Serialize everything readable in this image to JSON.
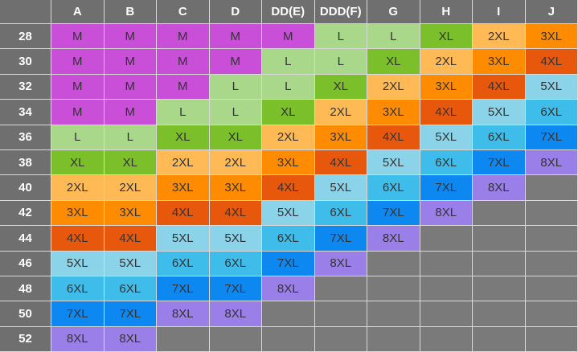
{
  "columns": [
    "A",
    "B",
    "C",
    "D",
    "DD(E)",
    "DDD(F)",
    "G",
    "H",
    "I",
    "J"
  ],
  "rows": [
    {
      "band": "28",
      "sizes": [
        "M",
        "M",
        "M",
        "M",
        "M",
        "L",
        "L",
        "XL",
        "2XL",
        "3XL"
      ]
    },
    {
      "band": "30",
      "sizes": [
        "M",
        "M",
        "M",
        "M",
        "L",
        "L",
        "XL",
        "2XL",
        "3XL",
        "4XL"
      ]
    },
    {
      "band": "32",
      "sizes": [
        "M",
        "M",
        "M",
        "L",
        "L",
        "XL",
        "2XL",
        "3XL",
        "4XL",
        "5XL"
      ]
    },
    {
      "band": "34",
      "sizes": [
        "M",
        "M",
        "L",
        "L",
        "XL",
        "2XL",
        "3XL",
        "4XL",
        "5XL",
        "6XL"
      ]
    },
    {
      "band": "36",
      "sizes": [
        "L",
        "L",
        "XL",
        "XL",
        "2XL",
        "3XL",
        "4XL",
        "5XL",
        "6XL",
        "7XL"
      ]
    },
    {
      "band": "38",
      "sizes": [
        "XL",
        "XL",
        "2XL",
        "2XL",
        "3XL",
        "4XL",
        "5XL",
        "6XL",
        "7XL",
        "8XL"
      ]
    },
    {
      "band": "40",
      "sizes": [
        "2XL",
        "2XL",
        "3XL",
        "3XL",
        "4XL",
        "5XL",
        "6XL",
        "7XL",
        "8XL",
        ""
      ]
    },
    {
      "band": "42",
      "sizes": [
        "3XL",
        "3XL",
        "4XL",
        "4XL",
        "5XL",
        "6XL",
        "7XL",
        "8XL",
        "",
        ""
      ]
    },
    {
      "band": "44",
      "sizes": [
        "4XL",
        "4XL",
        "5XL",
        "5XL",
        "6XL",
        "7XL",
        "8XL",
        "",
        "",
        ""
      ]
    },
    {
      "band": "46",
      "sizes": [
        "5XL",
        "5XL",
        "6XL",
        "6XL",
        "7XL",
        "8XL",
        "",
        "",
        "",
        ""
      ]
    },
    {
      "band": "48",
      "sizes": [
        "6XL",
        "6XL",
        "7XL",
        "7XL",
        "8XL",
        "",
        "",
        "",
        "",
        ""
      ]
    },
    {
      "band": "50",
      "sizes": [
        "7XL",
        "7XL",
        "8XL",
        "8XL",
        "",
        "",
        "",
        "",
        "",
        ""
      ]
    },
    {
      "band": "52",
      "sizes": [
        "8XL",
        "8XL",
        "",
        "",
        "",
        "",
        "",
        "",
        "",
        ""
      ]
    }
  ],
  "size_colors": {
    "M": "#c94fd8",
    "L": "#a9d88a",
    "XL": "#7bbf2a",
    "2XL": "#ffba55",
    "3XL": "#ff8c00",
    "4XL": "#e8580c",
    "5XL": "#8ad3e8",
    "6XL": "#3fbdea",
    "7XL": "#0c88f0",
    "8XL": "#9b7fe8"
  }
}
